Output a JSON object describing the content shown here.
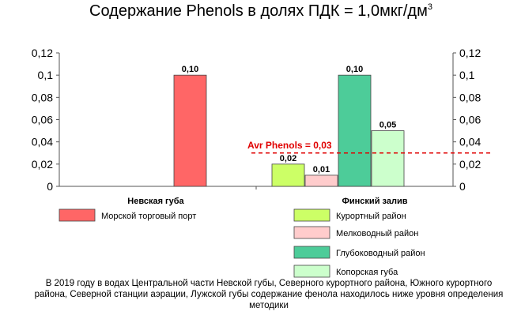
{
  "chart_data": {
    "type": "bar",
    "title": "Содержание Phenols в долях ПДК = 1,0мкг/дм",
    "title_sup": "3",
    "ylim": [
      0,
      0.12
    ],
    "yticks": [
      "0",
      "0,02",
      "0,04",
      "0,06",
      "0,08",
      "0,1",
      "0,12"
    ],
    "grid": false,
    "groups": [
      {
        "name": "Невская губа",
        "series": [
          {
            "name": "Морской торговый порт",
            "value": 0.1,
            "label": "0,10",
            "color": "#ff6666"
          }
        ]
      },
      {
        "name": "Финский залив",
        "series": [
          {
            "name": "Курортный район",
            "value": 0.02,
            "label": "0,02",
            "color": "#ccff66"
          },
          {
            "name": "Мелководный район",
            "value": 0.01,
            "label": "0,01",
            "color": "#ffcccc"
          },
          {
            "name": "Глубоководный район",
            "value": 0.1,
            "label": "0,10",
            "color": "#4dcc99"
          },
          {
            "name": "Копорская губа",
            "value": 0.05,
            "label": "0,05",
            "color": "#ccffcc"
          }
        ]
      }
    ],
    "reference_line": {
      "label": "Avr Phenols = 0,03",
      "value": 0.03,
      "color": "#e00000"
    },
    "legend_placement": "bottom"
  },
  "note": "В 2019 году в водах Центральной части Невской губы, Северного курортного района, Южного курортного района, Северной станции аэрации,  Лужской губы содержание фенола находилось ниже уровня определения методики"
}
